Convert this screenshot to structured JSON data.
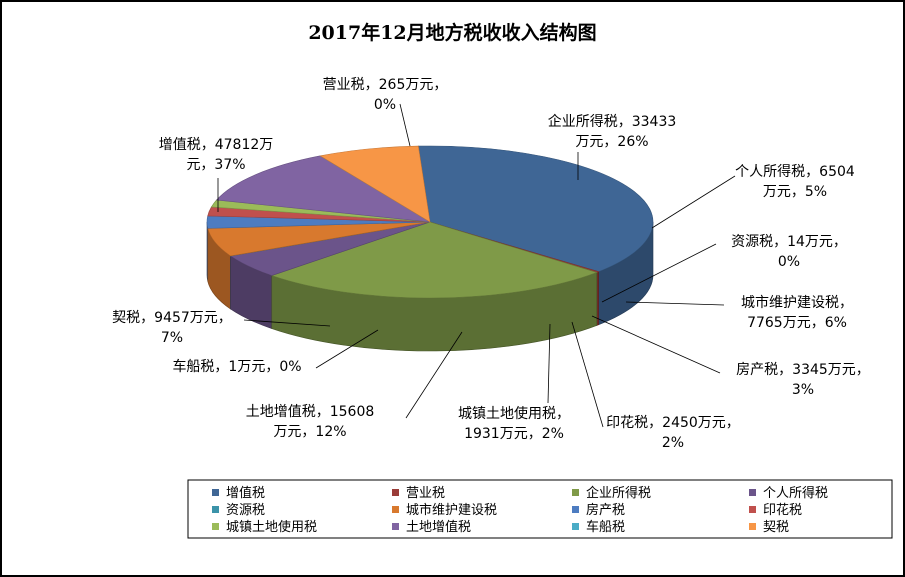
{
  "chart_data": {
    "type": "pie",
    "title": "2017年12月地方税收收入结构图",
    "unit": "万元",
    "slices": [
      {
        "name": "增值税",
        "value": 47812,
        "percent": "37%",
        "color": "#3f6695",
        "label_lines": [
          "增值税，47812万",
          "元，37%"
        ]
      },
      {
        "name": "营业税",
        "value": 265,
        "percent": "0%",
        "color": "#9a3c38",
        "label_lines": [
          "营业税，265万元，",
          "0%"
        ]
      },
      {
        "name": "企业所得税",
        "value": 33433,
        "percent": "26%",
        "color": "#7f9a48",
        "label_lines": [
          "企业所得税，33433",
          "万元，26%"
        ]
      },
      {
        "name": "个人所得税",
        "value": 6504,
        "percent": "5%",
        "color": "#6b548a",
        "label_lines": [
          "个人所得税，6504",
          "万元，5%"
        ]
      },
      {
        "name": "资源税",
        "value": 14,
        "percent": "0%",
        "color": "#3b93a9",
        "label_lines": [
          "资源税，14万元，",
          "0%"
        ]
      },
      {
        "name": "城市维护建设税",
        "value": 7765,
        "percent": "6%",
        "color": "#d8792e",
        "label_lines": [
          "城市维护建设税，",
          "7765万元，6%"
        ]
      },
      {
        "name": "房产税",
        "value": 3345,
        "percent": "3%",
        "color": "#4d7cc1",
        "label_lines": [
          "房产税，3345万元，",
          "3%"
        ]
      },
      {
        "name": "印花税",
        "value": 2450,
        "percent": "2%",
        "color": "#c0504d",
        "label_lines": [
          "印花税，2450万元，",
          "2%"
        ]
      },
      {
        "name": "城镇土地使用税",
        "value": 1931,
        "percent": "2%",
        "color": "#9bbb59",
        "label_lines": [
          "城镇土地使用税，",
          "1931万元，2%"
        ]
      },
      {
        "name": "土地增值税",
        "value": 15608,
        "percent": "12%",
        "color": "#8064a2",
        "label_lines": [
          "土地增值税，15608",
          "万元，12%"
        ]
      },
      {
        "name": "车船税",
        "value": 1,
        "percent": "0%",
        "color": "#4bacc6",
        "label_lines": [
          "车船税，1万元，0%"
        ]
      },
      {
        "name": "契税",
        "value": 9457,
        "percent": "7%",
        "color": "#f79646",
        "label_lines": [
          "契税，9457万元，",
          "7%"
        ]
      }
    ],
    "legend": {
      "position": "bottom",
      "columns": 4
    }
  }
}
